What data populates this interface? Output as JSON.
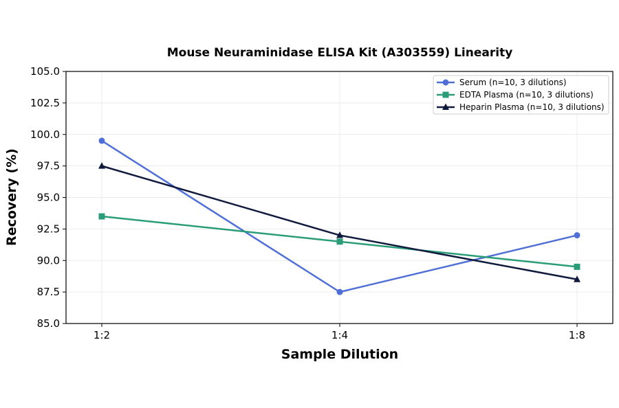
{
  "chart_data": {
    "type": "line",
    "title": "Mouse Neuraminidase ELISA Kit (A303559) Linearity",
    "xlabel": "Sample Dilution",
    "ylabel": "Recovery (%)",
    "categories": [
      "1:2",
      "1:4",
      "1:8"
    ],
    "ylim": [
      85.0,
      105.0
    ],
    "yticks": [
      "85.0",
      "87.5",
      "90.0",
      "92.5",
      "95.0",
      "97.5",
      "100.0",
      "102.5",
      "105.0"
    ],
    "grid": true,
    "legend_position": "top-right",
    "series": [
      {
        "name": "Serum (n=10, 3 dilutions)",
        "values": [
          99.5,
          87.5,
          92.0
        ],
        "color": "#4f6fd6",
        "marker": "circle"
      },
      {
        "name": "EDTA Plasma (n=10, 3 dilutions)",
        "values": [
          93.5,
          91.5,
          89.5
        ],
        "color": "#2a9d78",
        "marker": "square"
      },
      {
        "name": "Heparin Plasma (n=10, 3 dilutions)",
        "values": [
          97.5,
          92.0,
          88.5
        ],
        "color": "#0f1a3d",
        "marker": "triangle"
      }
    ]
  }
}
